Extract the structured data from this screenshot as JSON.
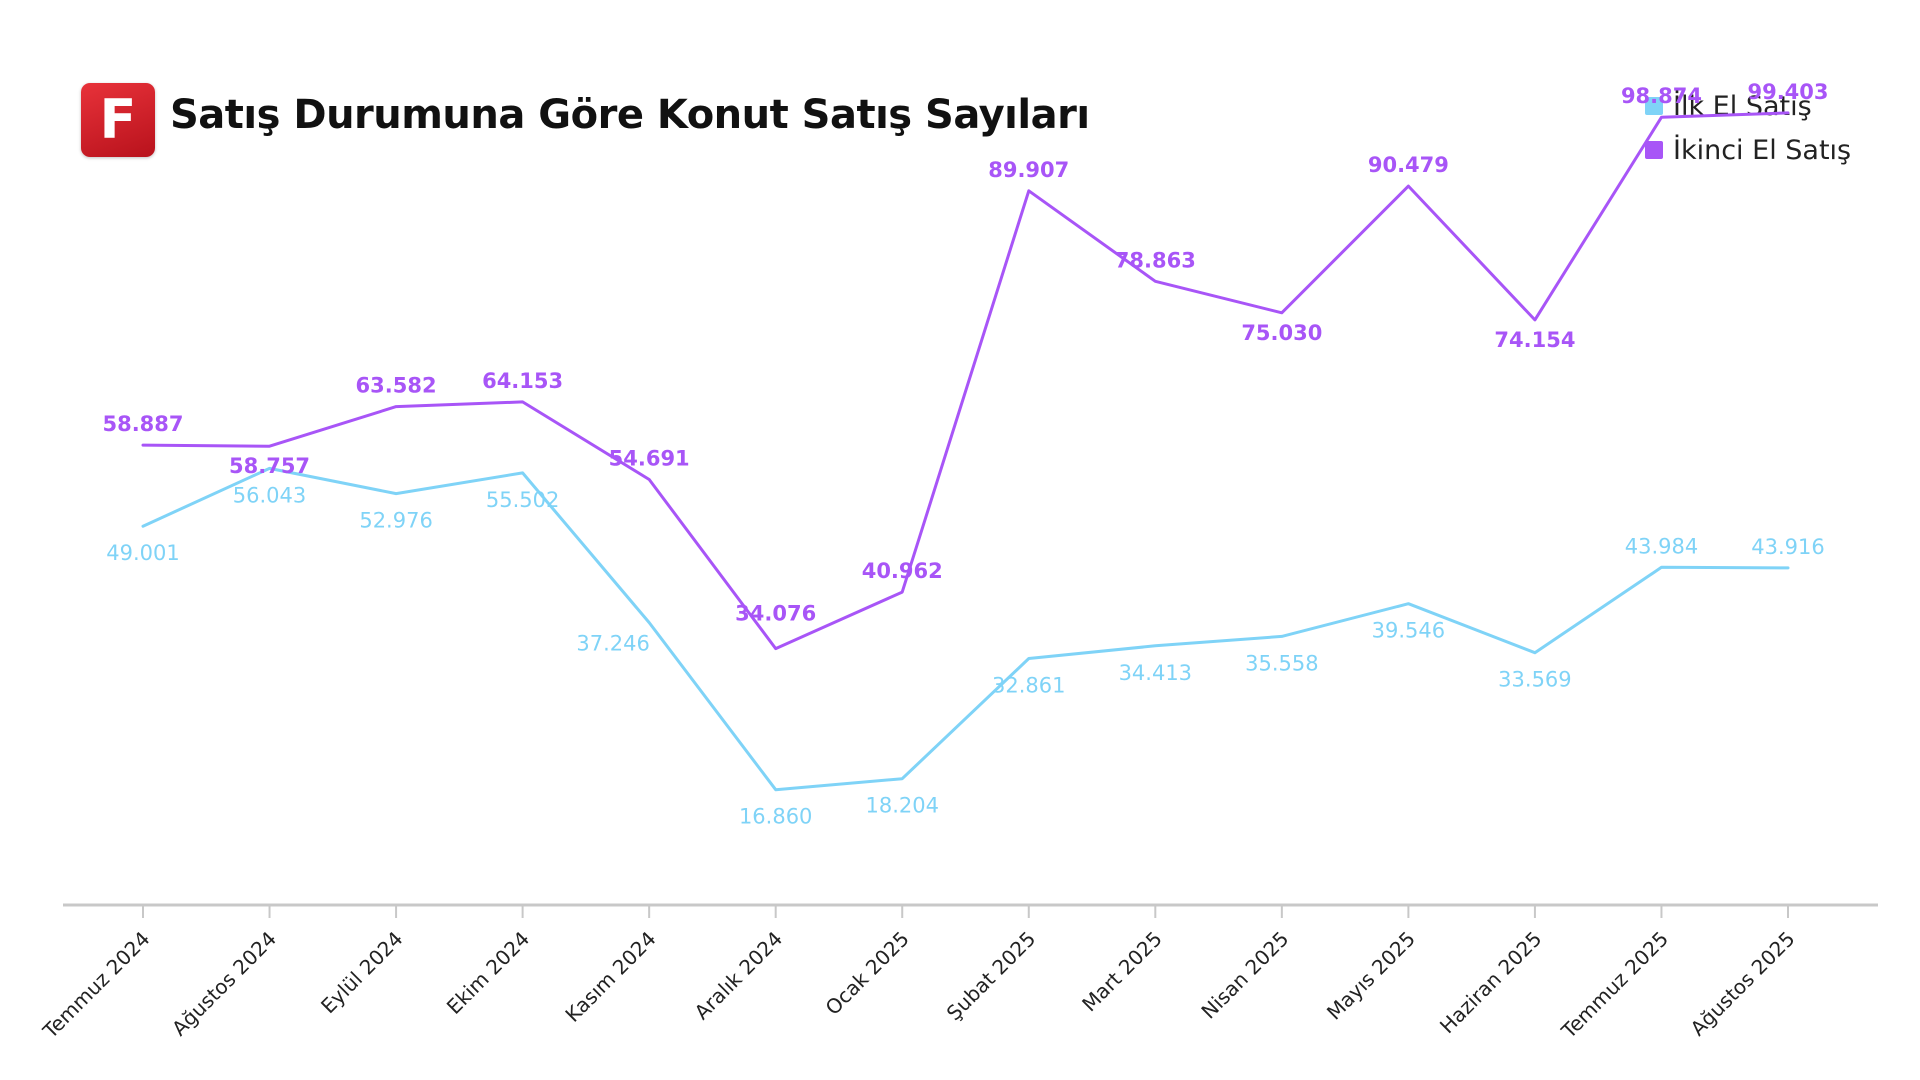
{
  "header": {
    "logo_letter": "F",
    "title": "Satış Durumuna Göre Konut Satış Sayıları"
  },
  "colors": {
    "first_hand": "#7fd3f7",
    "second_hand": "#a855f7",
    "axis": "#c8c8c8",
    "logo": "#d4202a"
  },
  "legend": [
    {
      "label": "İlk El Satış",
      "color": "#7fd3f7"
    },
    {
      "label": "İkinci El Satış",
      "color": "#a855f7"
    }
  ],
  "chart_data": {
    "type": "line",
    "title": "Satış Durumuna Göre Konut Satış Sayıları",
    "xlabel": "",
    "ylabel": "",
    "grid": false,
    "legend_position": "top-right",
    "categories": [
      "Temmuz 2024",
      "Ağustos 2024",
      "Eylül 2024",
      "Ekim 2024",
      "Kasım 2024",
      "Aralık 2024",
      "Ocak 2025",
      "Şubat 2025",
      "Mart 2025",
      "Nisan 2025",
      "Mayıs 2025",
      "Haziran 2025",
      "Temmuz 2025",
      "Ağustos 2025"
    ],
    "ylim": [
      0,
      115000
    ],
    "series": [
      {
        "name": "İlk El Satış",
        "color": "#7fd3f7",
        "values": [
          49001,
          56043,
          52976,
          55502,
          37246,
          16860,
          18204,
          32861,
          34413,
          35558,
          39546,
          33569,
          43984,
          43916
        ],
        "labels": [
          "49.001",
          "56.043",
          "52.976",
          "55.502",
          "37.246",
          "16.860",
          "18.204",
          "32.861",
          "34.413",
          "35.558",
          "39.546",
          "33.569",
          "43.984",
          "43.916"
        ]
      },
      {
        "name": "İkinci El Satış",
        "color": "#a855f7",
        "values": [
          58887,
          58757,
          63582,
          64153,
          54691,
          34076,
          40962,
          89907,
          78863,
          75030,
          90479,
          74154,
          98874,
          99403
        ],
        "labels": [
          "58.887",
          "58.757",
          "63.582",
          "64.153",
          "54.691",
          "34.076",
          "40.962",
          "89.907",
          "78.863",
          "75.030",
          "90.479",
          "74.154",
          "98.874",
          "99.403"
        ]
      }
    ]
  }
}
